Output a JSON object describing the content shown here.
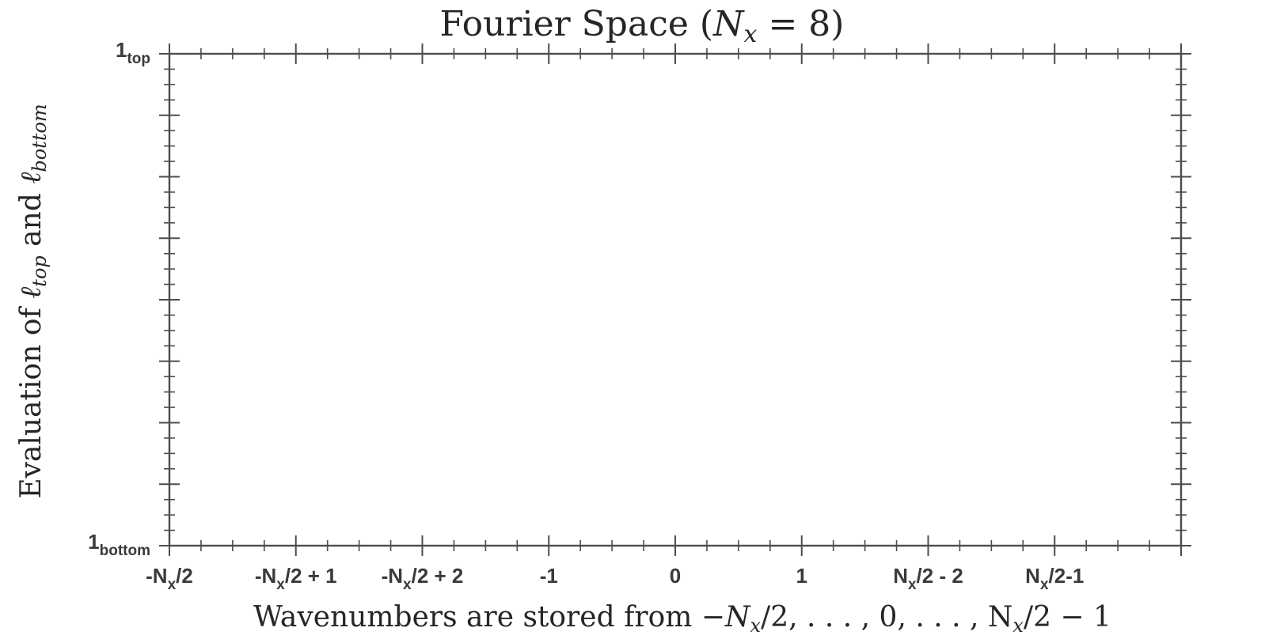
{
  "chart_data": {
    "type": "scatter",
    "title": {
      "prefix": "Fourier Space (",
      "symbol": "N",
      "symbol_sub": "x",
      "suffix": " = 8)"
    },
    "xlabel": {
      "prefix": "Wavenumbers are stored from ",
      "math": "−N",
      "math_sub": "x",
      "middle": "/2, . . . , 0, . . . , N",
      "middle_sub": "x",
      "suffix": "/2 − 1"
    },
    "ylabel": {
      "prefix": "Evaluation of ",
      "ell1": "ℓ",
      "ell1_sub": "top",
      "middle": " and ",
      "ell2": "ℓ",
      "ell2_sub": "bottom"
    },
    "xlim": [
      0,
      8
    ],
    "ylim": [
      0,
      1
    ],
    "x_ticks": [
      {
        "x": 0,
        "parts": [
          {
            "t": "-N"
          },
          {
            "t": "x",
            "sub": true
          },
          {
            "t": "/2"
          }
        ]
      },
      {
        "x": 1,
        "parts": [
          {
            "t": "-N"
          },
          {
            "t": "x",
            "sub": true
          },
          {
            "t": "/2 + 1"
          }
        ]
      },
      {
        "x": 2,
        "parts": [
          {
            "t": "-N"
          },
          {
            "t": "x",
            "sub": true
          },
          {
            "t": "/2 + 2"
          }
        ]
      },
      {
        "x": 3,
        "parts": [
          {
            "t": "-1"
          }
        ]
      },
      {
        "x": 4,
        "parts": [
          {
            "t": "0"
          }
        ]
      },
      {
        "x": 5,
        "parts": [
          {
            "t": "1"
          }
        ]
      },
      {
        "x": 6,
        "parts": [
          {
            "t": "N"
          },
          {
            "t": "x",
            "sub": true
          },
          {
            "t": "/2 - 2"
          }
        ]
      },
      {
        "x": 7,
        "parts": [
          {
            "t": "N"
          },
          {
            "t": "x",
            "sub": true
          },
          {
            "t": "/2-1"
          }
        ]
      },
      {
        "x": 8,
        "parts": []
      }
    ],
    "y_ticks": [
      {
        "y": 1,
        "parts": [
          {
            "t": "1"
          },
          {
            "t": "top",
            "sub": true
          }
        ]
      },
      {
        "y": 0,
        "parts": [
          {
            "t": "1"
          },
          {
            "t": "bottom",
            "sub": true
          }
        ]
      }
    ],
    "x_minor_per_major": 4,
    "y_major_count": 8,
    "y_minor_per_major": 4,
    "series": [],
    "grid": false,
    "box": true
  }
}
